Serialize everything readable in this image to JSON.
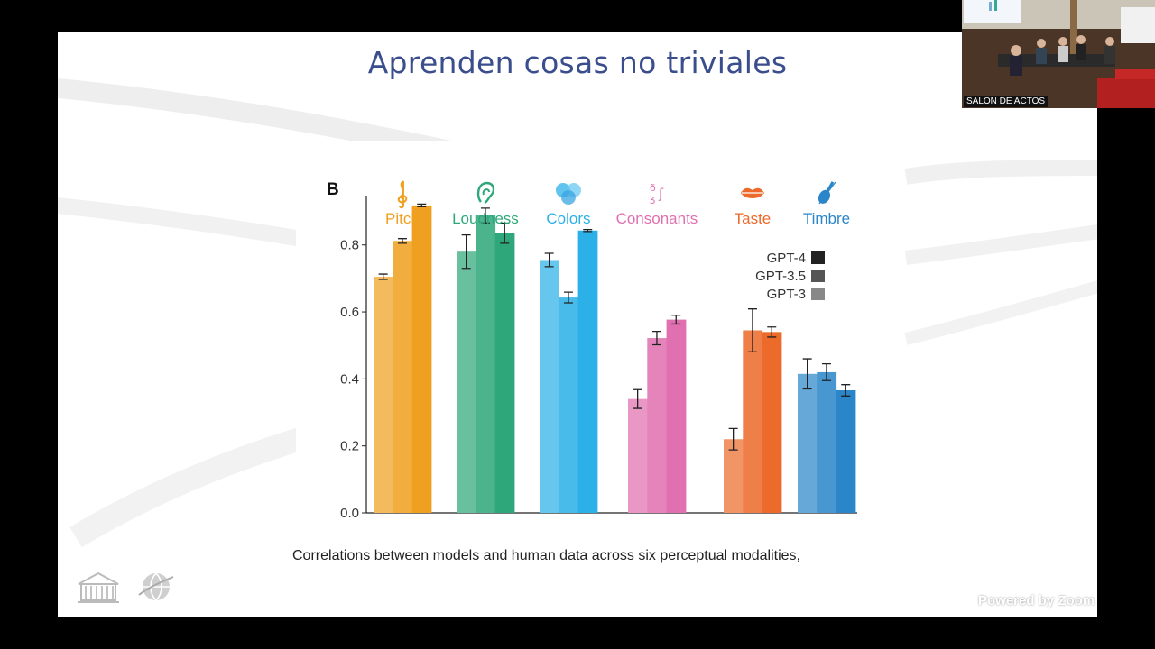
{
  "slide": {
    "title": "Aprenden cosas no triviales",
    "caption": "Correlations between models and human data across six perceptual modalities,"
  },
  "camera": {
    "label": "SALON DE ACTOS"
  },
  "watermark": {
    "text": "Powered by Zoom"
  },
  "chart_data": {
    "type": "bar",
    "panel_label": "B",
    "categories": [
      "Pitch",
      "Loudness",
      "Colors",
      "Consonants",
      "Taste",
      "Timbre"
    ],
    "category_icons": [
      "treble-clef-icon",
      "ear-icon",
      "color-blob-icon",
      "ipa-symbols-icon",
      "lips-icon",
      "violin-icon"
    ],
    "category_colors": [
      "#f0a020",
      "#2ea87a",
      "#2bb0e8",
      "#e070b0",
      "#ec6a2a",
      "#2a86c8"
    ],
    "series": [
      {
        "name": "GPT-3",
        "values": [
          0.705,
          0.78,
          0.755,
          0.34,
          0.22,
          0.415
        ]
      },
      {
        "name": "GPT-3.5",
        "values": [
          0.812,
          0.888,
          0.643,
          0.522,
          0.545,
          0.42
        ]
      },
      {
        "name": "GPT-4",
        "values": [
          0.918,
          0.835,
          0.843,
          0.577,
          0.54,
          0.366
        ]
      }
    ],
    "errors": [
      [
        0.008,
        0.05,
        0.02,
        0.028,
        0.032,
        0.045
      ],
      [
        0.007,
        0.022,
        0.016,
        0.02,
        0.064,
        0.025
      ],
      [
        0.004,
        0.03,
        0.003,
        0.013,
        0.015,
        0.017
      ]
    ],
    "legend": {
      "entries": [
        "GPT-4",
        "GPT-3.5",
        "GPT-3"
      ],
      "swatches": [
        "#222222",
        "#555555",
        "#888888"
      ],
      "placement": "right"
    },
    "yticks": [
      "0.0",
      "0.2",
      "0.4",
      "0.6",
      "0.8"
    ],
    "ylim": [
      0,
      0.95
    ],
    "grid": false
  }
}
